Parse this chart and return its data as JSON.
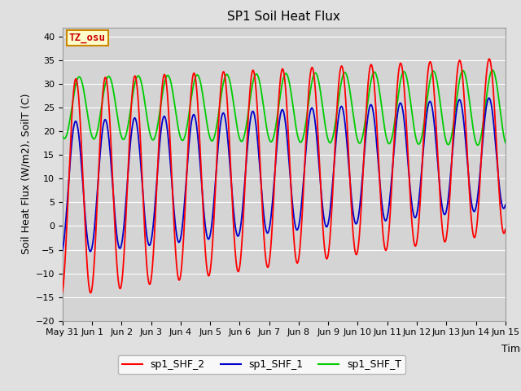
{
  "title": "SP1 Soil Heat Flux",
  "xlabel": "Time",
  "ylabel": "Soil Heat Flux (W/m2), SoilT (C)",
  "ylim": [
    -20,
    42
  ],
  "xlim_days": [
    0,
    15
  ],
  "fig_bg_color": "#e0e0e0",
  "plot_bg_color": "#d4d4d4",
  "grid_color": "#ffffff",
  "title_fontsize": 11,
  "label_fontsize": 9,
  "tick_fontsize": 8,
  "annotation_text": "TZ_osu",
  "annotation_bg": "#ffffcc",
  "annotation_border": "#cc8800",
  "annotation_text_color": "#cc0000",
  "shf2_color": "#ff0000",
  "shf1_color": "#0000cc",
  "shft_color": "#00cc00",
  "legend_labels": [
    "sp1_SHF_2",
    "sp1_SHF_1",
    "sp1_SHF_T"
  ],
  "x_tick_labels": [
    "May 31",
    "Jun 1",
    "Jun 2",
    "Jun 3",
    "Jun 4",
    "Jun 5",
    "Jun 6",
    "Jun 7",
    "Jun 8",
    "Jun 9",
    "Jun 10",
    "Jun 11",
    "Jun 12",
    "Jun 13",
    "Jun 14",
    "Jun 15"
  ],
  "x_tick_positions": [
    0,
    1,
    2,
    3,
    4,
    5,
    6,
    7,
    8,
    9,
    10,
    11,
    12,
    13,
    14,
    15
  ],
  "samples": 2000
}
